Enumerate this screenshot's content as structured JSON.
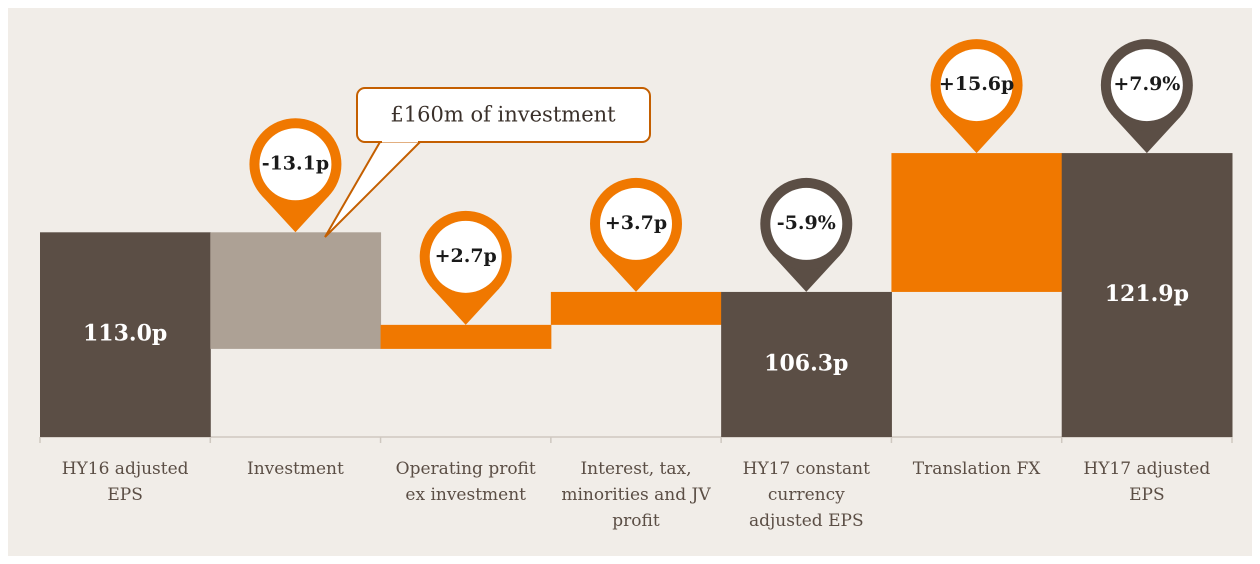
{
  "chart_data": {
    "type": "waterfall",
    "categories": [
      "HY16 adjusted EPS",
      "Investment",
      "Operating profit ex investment",
      "Interest, tax, minorities and JV profit",
      "HY17 constant currency adjusted EPS",
      "Translation FX",
      "HY17 adjusted EPS"
    ],
    "measures": [
      "total",
      "relative",
      "relative",
      "relative",
      "total",
      "relative",
      "total"
    ],
    "values": [
      113.0,
      -13.1,
      2.7,
      3.7,
      106.3,
      15.6,
      121.9
    ],
    "value_labels": [
      "113.0p",
      "-13.1p",
      "+2.7p",
      "+3.7p",
      "106.3p",
      "+15.6p",
      "121.9p"
    ],
    "pct_change": [
      null,
      null,
      null,
      null,
      -5.9,
      null,
      7.9
    ],
    "pct_change_labels": [
      null,
      null,
      null,
      null,
      "-5.9%",
      null,
      "+7.9%"
    ],
    "annotation": "£160m of investment",
    "ylim": [
      90,
      135
    ],
    "total_color": "#5b4e45",
    "increase_color": "#f07800",
    "decrease_color": "#ada195"
  }
}
